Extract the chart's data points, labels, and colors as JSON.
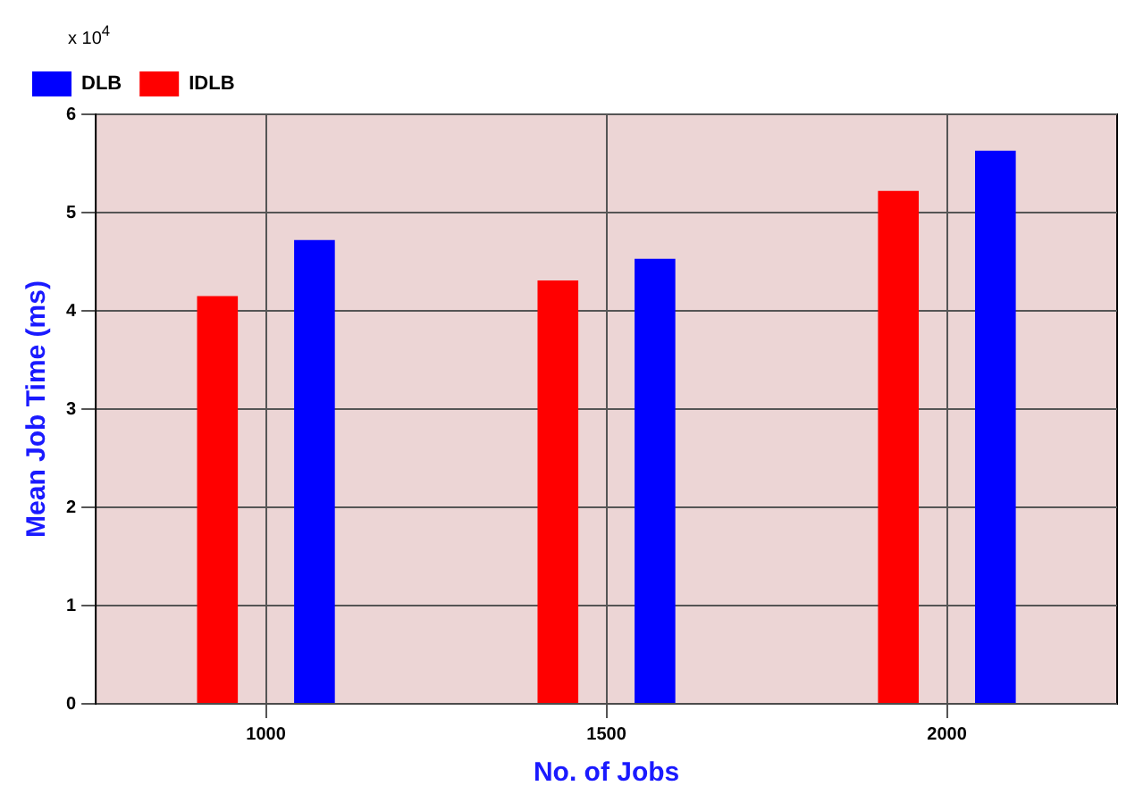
{
  "chart_data": {
    "type": "bar",
    "xlabel": "No. of Jobs",
    "ylabel": "Mean Job Time (ms)",
    "categories": [
      "1000",
      "1500",
      "2000"
    ],
    "series": [
      {
        "name": "IDLB",
        "color": "#ff0000",
        "values": [
          4.15,
          4.31,
          5.22
        ]
      },
      {
        "name": "DLB",
        "color": "#0000ff",
        "values": [
          4.72,
          4.53,
          5.63
        ]
      }
    ],
    "ylim": [
      0,
      6
    ],
    "yticks": [
      0,
      1,
      2,
      3,
      4,
      5,
      6
    ],
    "grid": true,
    "legend": "top left",
    "annotations": [
      "x 10$^{4}$"
    ]
  }
}
